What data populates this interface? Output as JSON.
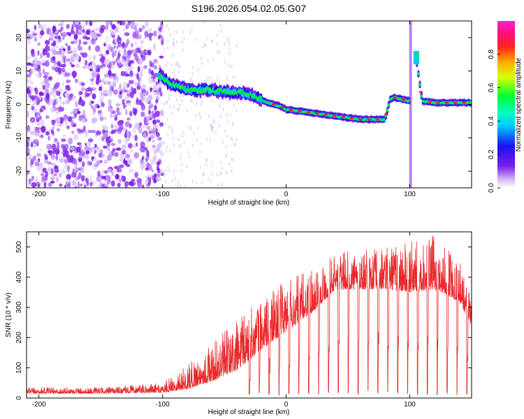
{
  "title": "S196.2026.054.02.05.G07",
  "colors": {
    "snr_line": "#e8292b",
    "scatter_purple": "#7a1fe8",
    "axis": "#000000"
  },
  "chart_data": [
    {
      "type": "heatmap",
      "name": "spectrogram",
      "title": "S196.2026.054.02.05.G07",
      "xlabel": "Height of straight line (km)",
      "ylabel": "Frequency (Hz)",
      "xlim": [
        -210,
        150
      ],
      "ylim": [
        -25,
        25
      ],
      "x_ticks": [
        -200,
        -100,
        0,
        100
      ],
      "y_ticks": [
        -20,
        -10,
        0,
        10,
        20
      ],
      "colorbar": {
        "label": "Normalized spectral amplitude",
        "range": [
          0,
          1
        ],
        "ticks": [
          0.0,
          0.2,
          0.4,
          0.6,
          0.8
        ],
        "colormap": "rainbow (white-purple-blue-cyan-green-yellow-red-magenta)"
      },
      "noise_region_x": [
        -210,
        -100
      ],
      "ridge": {
        "x": [
          -102,
          -95,
          -85,
          -75,
          -65,
          -55,
          -45,
          -35,
          -25,
          -15,
          -5,
          0,
          10,
          20,
          30,
          40,
          50,
          60,
          70,
          80,
          84,
          88,
          95,
          100,
          105,
          110,
          120,
          130,
          140,
          150
        ],
        "frequency": [
          8.5,
          6.5,
          5.0,
          4.0,
          4.5,
          4.0,
          3.5,
          3.5,
          2.5,
          0.5,
          -0.5,
          -1.5,
          -2.0,
          -2.5,
          -3.0,
          -3.5,
          -4.0,
          -4.5,
          -4.5,
          -4.5,
          1.5,
          2.0,
          1.5,
          1.0,
          14.5,
          1.0,
          0.5,
          0.5,
          0.5,
          0.5
        ]
      }
    },
    {
      "type": "line",
      "name": "snr",
      "xlabel": "Height of straight line (km)",
      "ylabel": "SNR (10 * v/v)",
      "xlim": [
        -210,
        150
      ],
      "ylim": [
        0,
        550
      ],
      "x_ticks": [
        -200,
        -100,
        0,
        100
      ],
      "y_ticks": [
        0,
        100,
        200,
        300,
        400,
        500
      ],
      "envelope": {
        "x": [
          -210,
          -150,
          -100,
          -80,
          -60,
          -40,
          -20,
          0,
          20,
          40,
          60,
          80,
          100,
          120,
          140,
          150
        ],
        "base": [
          15,
          15,
          18,
          30,
          55,
          90,
          160,
          220,
          280,
          360,
          360,
          360,
          350,
          360,
          320,
          240
        ],
        "peak": [
          35,
          35,
          50,
          110,
          180,
          260,
          330,
          390,
          430,
          480,
          490,
          500,
          520,
          540,
          460,
          330
        ]
      },
      "dip_spacing_km": 8
    }
  ]
}
